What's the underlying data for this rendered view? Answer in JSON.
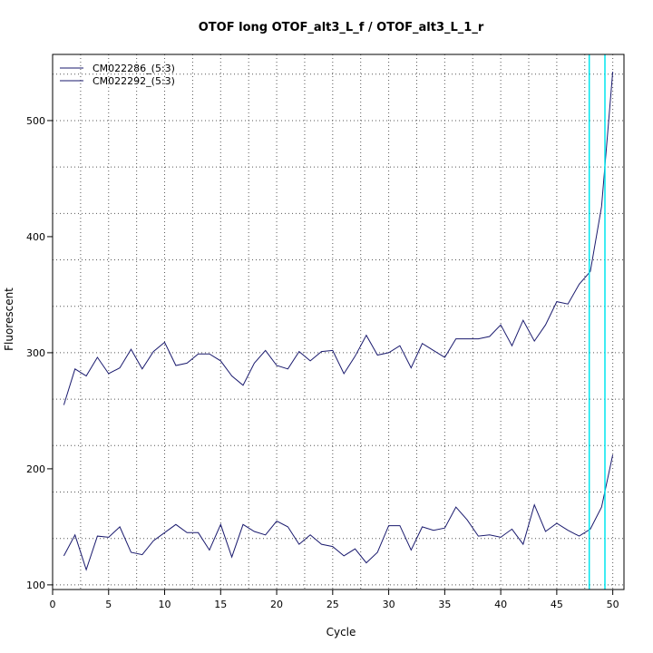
{
  "chart_data": {
    "type": "line",
    "title": "OTOF long OTOF_alt3_L_f / OTOF_alt3_L_1_r",
    "xlabel": "Cycle",
    "ylabel": "Fluorescent",
    "xlim": [
      0,
      51
    ],
    "ylim": [
      96,
      557
    ],
    "x_ticks": [
      0,
      5,
      10,
      15,
      20,
      25,
      30,
      35,
      40,
      45,
      50
    ],
    "y_ticks": [
      100,
      200,
      300,
      400,
      500
    ],
    "grid": true,
    "legend_position": "top-left",
    "threshold_color": "#00e5ee",
    "line_color": "#1a1a6e",
    "thresholds": [
      47.9,
      49.3
    ],
    "x": [
      1,
      2,
      3,
      4,
      5,
      6,
      7,
      8,
      9,
      10,
      11,
      12,
      13,
      14,
      15,
      16,
      17,
      18,
      19,
      20,
      21,
      22,
      23,
      24,
      25,
      26,
      27,
      28,
      29,
      30,
      31,
      32,
      33,
      34,
      35,
      36,
      37,
      38,
      39,
      40,
      41,
      42,
      43,
      44,
      45,
      46,
      47,
      48,
      49,
      50
    ],
    "series": [
      {
        "name": "CM022286_(5:3)",
        "values": [
          255,
          286,
          280,
          296,
          282,
          287,
          303,
          286,
          301,
          309,
          289,
          291,
          299,
          299,
          293,
          280,
          272,
          291,
          302,
          289,
          286,
          301,
          293,
          301,
          302,
          282,
          297,
          315,
          298,
          300,
          306,
          287,
          308,
          302,
          296,
          312,
          312,
          312,
          314,
          324,
          306,
          328,
          310,
          324,
          344,
          342,
          359,
          370,
          426,
          542
        ]
      },
      {
        "name": "CM022292_(5:3)",
        "values": [
          125,
          143,
          113,
          142,
          141,
          150,
          128,
          126,
          138,
          145,
          152,
          145,
          145,
          130,
          152,
          124,
          152,
          146,
          143,
          155,
          150,
          135,
          143,
          135,
          133,
          125,
          131,
          119,
          128,
          151,
          151,
          130,
          150,
          147,
          149,
          167,
          156,
          142,
          143,
          141,
          148,
          135,
          169,
          146,
          153,
          147,
          142,
          148,
          167,
          212
        ]
      }
    ]
  }
}
